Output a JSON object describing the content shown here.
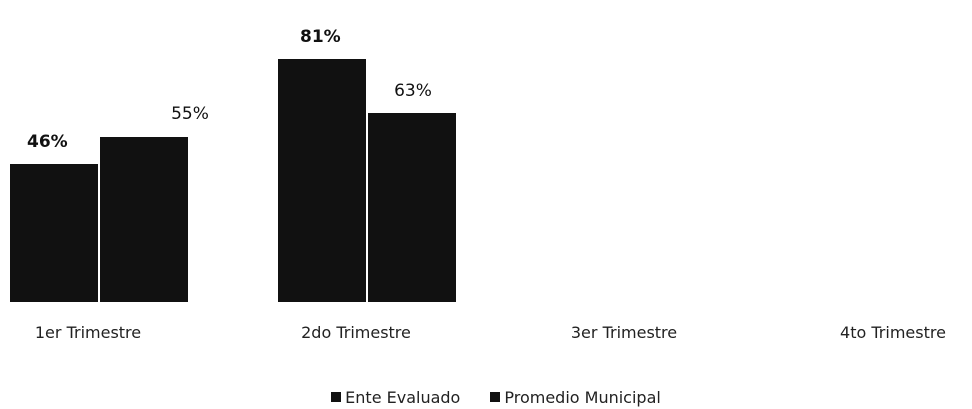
{
  "chart_data": {
    "type": "bar",
    "categories": [
      "1er Trimestre",
      "2do Trimestre",
      "3er Trimestre",
      "4to Trimestre"
    ],
    "series": [
      {
        "name": "Ente Evaluado",
        "values": [
          46,
          81,
          null,
          null
        ],
        "labels": [
          "46%",
          "81%",
          "",
          ""
        ],
        "color": "#111111"
      },
      {
        "name": "Promedio Municipal",
        "values": [
          55,
          63,
          null,
          null
        ],
        "labels": [
          "55%",
          "63%",
          "",
          ""
        ],
        "color": "#111111"
      }
    ],
    "ylim": [
      0,
      100
    ],
    "grid": false,
    "legend": "bottom-center"
  }
}
